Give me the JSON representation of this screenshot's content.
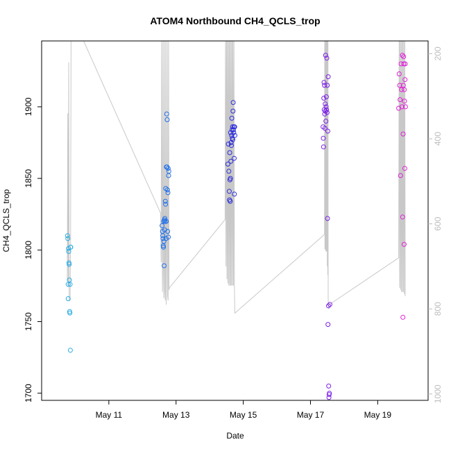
{
  "chart_data": {
    "type": "scatter",
    "title": "ATOM4 Northbound CH4_QCLS_trop",
    "xlabel": "Date",
    "ylabel": "CH4_QCLS_trop",
    "xlim": [
      "2018-05-09T00:00",
      "2018-05-20T12:00"
    ],
    "ylim": [
      1695,
      1946
    ],
    "x_tick_labels": [
      "May 11",
      "May 13",
      "May 15",
      "May 17",
      "May 19"
    ],
    "y_ticks": [
      1700,
      1750,
      1800,
      1850,
      1900
    ],
    "secondary_y": {
      "label": "",
      "ylim": [
        1015,
        170
      ],
      "inverted": true,
      "ticks": [
        200,
        400,
        600,
        800,
        1000
      ],
      "color": "#bdbdbd"
    },
    "grid": false,
    "series": [
      {
        "color": "#29abe2",
        "points": [
          [
            "2018-05-09T18:30",
            1810
          ],
          [
            "2018-05-09T18:40",
            1808
          ],
          [
            "2018-05-09T19:00",
            1776
          ],
          [
            "2018-05-09T19:10",
            1801
          ],
          [
            "2018-05-09T19:20",
            1799
          ],
          [
            "2018-05-09T19:30",
            1791
          ],
          [
            "2018-05-09T19:40",
            1790
          ],
          [
            "2018-05-09T19:00",
            1766
          ],
          [
            "2018-05-09T19:50",
            1779
          ],
          [
            "2018-05-09T20:00",
            1757
          ],
          [
            "2018-05-09T20:10",
            1756
          ],
          [
            "2018-05-09T20:20",
            1776
          ],
          [
            "2018-05-09T20:30",
            1730
          ],
          [
            "2018-05-09T20:40",
            1802
          ],
          [
            "2018-05-09T20:50",
            1802
          ]
        ]
      },
      {
        "color": "#1f6fe8",
        "points": [
          [
            "2018-05-12T14:00",
            1817
          ],
          [
            "2018-05-12T14:20",
            1813
          ],
          [
            "2018-05-12T14:30",
            1810
          ],
          [
            "2018-05-12T14:40",
            1808
          ],
          [
            "2018-05-12T14:50",
            1803
          ],
          [
            "2018-05-12T15:00",
            1802
          ],
          [
            "2018-05-12T15:10",
            1820
          ],
          [
            "2018-05-12T15:20",
            1806
          ],
          [
            "2018-05-12T15:30",
            1789
          ],
          [
            "2018-05-12T15:40",
            1821
          ],
          [
            "2018-05-12T15:50",
            1814
          ],
          [
            "2018-05-12T16:00",
            1822
          ],
          [
            "2018-05-12T16:10",
            1820
          ],
          [
            "2018-05-12T16:20",
            1834
          ],
          [
            "2018-05-12T16:30",
            1832
          ],
          [
            "2018-05-12T16:40",
            1843
          ],
          [
            "2018-05-12T16:50",
            1808
          ],
          [
            "2018-05-12T17:00",
            1820
          ],
          [
            "2018-05-12T17:10",
            1858
          ],
          [
            "2018-05-12T17:20",
            1895
          ],
          [
            "2018-05-12T17:30",
            1858
          ],
          [
            "2018-05-12T17:40",
            1891
          ],
          [
            "2018-05-12T17:50",
            1842
          ],
          [
            "2018-05-12T18:00",
            1813
          ],
          [
            "2018-05-12T18:10",
            1840
          ],
          [
            "2018-05-12T18:20",
            1857
          ],
          [
            "2018-05-12T18:30",
            1809
          ],
          [
            "2018-05-12T18:40",
            1852
          ],
          [
            "2018-05-12T18:50",
            1855
          ]
        ]
      },
      {
        "color": "#2b2bdc",
        "points": [
          [
            "2018-05-14T13:00",
            1860
          ],
          [
            "2018-05-14T13:20",
            1874
          ],
          [
            "2018-05-14T13:40",
            1855
          ],
          [
            "2018-05-14T14:00",
            1841
          ],
          [
            "2018-05-14T14:10",
            1835
          ],
          [
            "2018-05-14T14:20",
            1868
          ],
          [
            "2018-05-14T14:30",
            1849
          ],
          [
            "2018-05-14T14:40",
            1834
          ],
          [
            "2018-05-14T14:50",
            1850
          ],
          [
            "2018-05-14T15:00",
            1882
          ],
          [
            "2018-05-14T15:10",
            1862
          ],
          [
            "2018-05-14T15:20",
            1875
          ],
          [
            "2018-05-14T15:30",
            1873
          ],
          [
            "2018-05-14T15:40",
            1880
          ],
          [
            "2018-05-14T15:50",
            1892
          ],
          [
            "2018-05-14T16:00",
            1884
          ],
          [
            "2018-05-14T16:10",
            1878
          ],
          [
            "2018-05-14T16:20",
            1886
          ],
          [
            "2018-05-14T16:30",
            1877
          ],
          [
            "2018-05-14T16:40",
            1897
          ],
          [
            "2018-05-14T16:50",
            1903
          ],
          [
            "2018-05-14T17:00",
            1884
          ],
          [
            "2018-05-14T17:10",
            1882
          ],
          [
            "2018-05-14T17:20",
            1886
          ],
          [
            "2018-05-14T17:30",
            1864
          ],
          [
            "2018-05-14T17:40",
            1839
          ],
          [
            "2018-05-14T17:50",
            1886
          ],
          [
            "2018-05-14T18:00",
            1880
          ]
        ]
      },
      {
        "color": "#7a1fe8",
        "points": [
          [
            "2018-05-17T09:00",
            1886
          ],
          [
            "2018-05-17T09:10",
            1878
          ],
          [
            "2018-05-17T09:20",
            1872
          ],
          [
            "2018-05-17T09:30",
            1906
          ],
          [
            "2018-05-17T09:40",
            1917
          ],
          [
            "2018-05-17T09:50",
            1898
          ],
          [
            "2018-05-17T10:00",
            1915
          ],
          [
            "2018-05-17T10:10",
            1895
          ],
          [
            "2018-05-17T10:20",
            1885
          ],
          [
            "2018-05-17T10:30",
            1902
          ],
          [
            "2018-05-17T10:40",
            1897
          ],
          [
            "2018-05-17T10:50",
            1936
          ],
          [
            "2018-05-17T11:00",
            1890
          ],
          [
            "2018-05-17T11:10",
            1900
          ],
          [
            "2018-05-17T11:20",
            1907
          ],
          [
            "2018-05-17T11:30",
            1898
          ],
          [
            "2018-05-17T11:40",
            1934
          ],
          [
            "2018-05-17T11:50",
            1896
          ],
          [
            "2018-05-17T12:00",
            1915
          ],
          [
            "2018-05-17T12:10",
            1822
          ],
          [
            "2018-05-17T12:20",
            1883
          ],
          [
            "2018-05-17T12:30",
            1748
          ],
          [
            "2018-05-17T12:40",
            1921
          ],
          [
            "2018-05-17T12:50",
            1761
          ],
          [
            "2018-05-17T13:00",
            1705
          ],
          [
            "2018-05-17T13:10",
            1697
          ],
          [
            "2018-05-17T13:20",
            1699
          ],
          [
            "2018-05-17T13:30",
            1700
          ],
          [
            "2018-05-17T13:50",
            1762
          ]
        ]
      },
      {
        "color": "#e21fd8",
        "points": [
          [
            "2018-05-19T15:00",
            1899
          ],
          [
            "2018-05-19T15:20",
            1923
          ],
          [
            "2018-05-19T15:40",
            1915
          ],
          [
            "2018-05-19T16:00",
            1905
          ],
          [
            "2018-05-19T16:20",
            1852
          ],
          [
            "2018-05-19T16:40",
            1930
          ],
          [
            "2018-05-19T17:00",
            1912
          ],
          [
            "2018-05-19T17:20",
            1900
          ],
          [
            "2018-05-19T17:40",
            1936
          ],
          [
            "2018-05-19T17:50",
            1823
          ],
          [
            "2018-05-19T18:00",
            1753
          ],
          [
            "2018-05-19T18:10",
            1881
          ],
          [
            "2018-05-19T18:20",
            1915
          ],
          [
            "2018-05-19T18:30",
            1935
          ],
          [
            "2018-05-19T18:40",
            1930
          ],
          [
            "2018-05-19T18:50",
            1804
          ],
          [
            "2018-05-19T19:00",
            1912
          ],
          [
            "2018-05-19T19:10",
            1904
          ],
          [
            "2018-05-19T19:20",
            1857
          ],
          [
            "2018-05-19T19:30",
            1919
          ],
          [
            "2018-05-19T19:40",
            1930
          ],
          [
            "2018-05-19T19:50",
            1900
          ]
        ]
      }
    ],
    "secondary_line": {
      "color": "#c8c8c8",
      "points": [
        [
          "2018-05-09T18:20",
          730
        ],
        [
          "2018-05-09T18:40",
          340
        ],
        [
          "2018-05-09T19:00",
          745
        ],
        [
          "2018-05-09T19:20",
          220
        ],
        [
          "2018-05-09T19:40",
          780
        ],
        [
          "2018-05-09T20:00",
          780
        ],
        [
          "2018-05-09T20:20",
          780
        ],
        [
          "2018-05-09T20:40",
          650
        ],
        [
          "2018-05-09T21:00",
          140
        ],
        [
          "2018-05-10T06:00",
          140
        ],
        [
          "2018-05-12T13:00",
          575
        ],
        [
          "2018-05-12T13:20",
          690
        ],
        [
          "2018-05-12T13:40",
          140
        ],
        [
          "2018-05-12T14:00",
          640
        ],
        [
          "2018-05-12T14:20",
          760
        ],
        [
          "2018-05-12T14:40",
          140
        ],
        [
          "2018-05-12T15:00",
          720
        ],
        [
          "2018-05-12T15:20",
          775
        ],
        [
          "2018-05-12T15:40",
          140
        ],
        [
          "2018-05-12T16:00",
          760
        ],
        [
          "2018-05-12T16:20",
          780
        ],
        [
          "2018-05-12T16:40",
          140
        ],
        [
          "2018-05-12T17:00",
          790
        ],
        [
          "2018-05-12T17:20",
          650
        ],
        [
          "2018-05-12T17:40",
          140
        ],
        [
          "2018-05-12T18:00",
          770
        ],
        [
          "2018-05-12T18:20",
          780
        ],
        [
          "2018-05-12T18:40",
          140
        ],
        [
          "2018-05-12T19:00",
          755
        ],
        [
          "2018-05-12T19:20",
          750
        ],
        [
          "2018-05-14T11:00",
          590
        ],
        [
          "2018-05-14T11:20",
          140
        ],
        [
          "2018-05-14T11:40",
          700
        ],
        [
          "2018-05-14T12:00",
          140
        ],
        [
          "2018-05-14T12:20",
          730
        ],
        [
          "2018-05-14T12:40",
          140
        ],
        [
          "2018-05-14T13:00",
          740
        ],
        [
          "2018-05-14T13:20",
          140
        ],
        [
          "2018-05-14T13:40",
          745
        ],
        [
          "2018-05-14T14:00",
          140
        ],
        [
          "2018-05-14T14:20",
          745
        ],
        [
          "2018-05-14T14:40",
          140
        ],
        [
          "2018-05-14T15:00",
          745
        ],
        [
          "2018-05-14T15:20",
          140
        ],
        [
          "2018-05-14T15:40",
          745
        ],
        [
          "2018-05-14T16:00",
          140
        ],
        [
          "2018-05-14T16:20",
          745
        ],
        [
          "2018-05-14T16:40",
          140
        ],
        [
          "2018-05-14T17:00",
          745
        ],
        [
          "2018-05-14T17:20",
          140
        ],
        [
          "2018-05-14T17:40",
          745
        ],
        [
          "2018-05-14T18:00",
          810
        ],
        [
          "2018-05-17T10:00",
          625
        ],
        [
          "2018-05-17T10:10",
          140
        ],
        [
          "2018-05-17T10:20",
          660
        ],
        [
          "2018-05-17T10:30",
          140
        ],
        [
          "2018-05-17T10:40",
          660
        ],
        [
          "2018-05-17T10:50",
          140
        ],
        [
          "2018-05-17T11:00",
          665
        ],
        [
          "2018-05-17T11:10",
          140
        ],
        [
          "2018-05-17T11:20",
          665
        ],
        [
          "2018-05-17T11:30",
          140
        ],
        [
          "2018-05-17T11:40",
          665
        ],
        [
          "2018-05-17T11:50",
          140
        ],
        [
          "2018-05-17T12:00",
          700
        ],
        [
          "2018-05-17T12:10",
          140
        ],
        [
          "2018-05-17T12:20",
          720
        ],
        [
          "2018-05-17T12:30",
          140
        ],
        [
          "2018-05-17T12:40",
          780
        ],
        [
          "2018-05-17T13:00",
          800
        ],
        [
          "2018-05-17T13:20",
          790
        ],
        [
          "2018-05-19T15:00",
          680
        ],
        [
          "2018-05-19T15:20",
          140
        ],
        [
          "2018-05-19T15:40",
          750
        ],
        [
          "2018-05-19T16:00",
          140
        ],
        [
          "2018-05-19T16:20",
          755
        ],
        [
          "2018-05-19T16:40",
          140
        ],
        [
          "2018-05-19T17:00",
          760
        ],
        [
          "2018-05-19T17:20",
          140
        ],
        [
          "2018-05-19T17:40",
          760
        ],
        [
          "2018-05-19T18:00",
          140
        ],
        [
          "2018-05-19T18:20",
          760
        ],
        [
          "2018-05-19T18:40",
          140
        ],
        [
          "2018-05-19T19:00",
          765
        ],
        [
          "2018-05-19T19:20",
          140
        ],
        [
          "2018-05-19T19:40",
          770
        ]
      ]
    }
  }
}
